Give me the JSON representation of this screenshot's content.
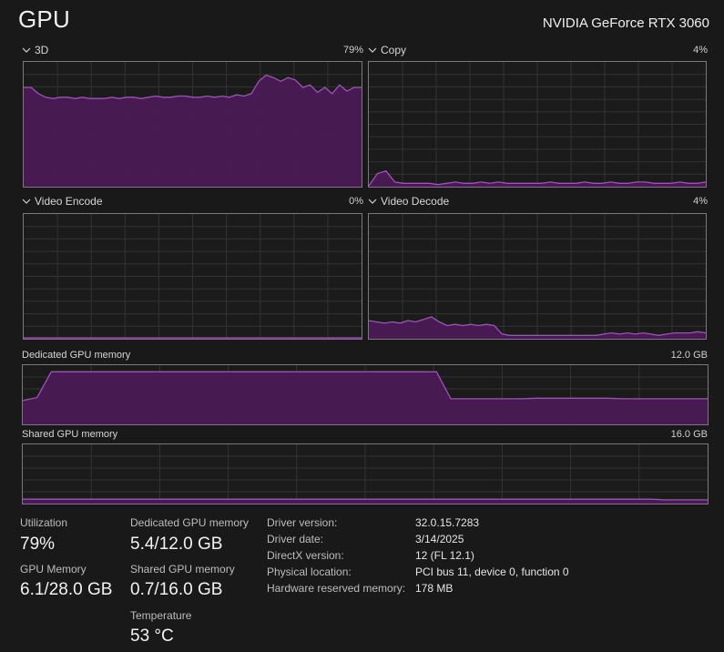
{
  "header": {
    "title": "GPU",
    "device": "NVIDIA GeForce RTX 3060"
  },
  "colors": {
    "accent": "#a54cc2",
    "fill": "#4b1a55",
    "grid": "#333333",
    "border": "#7a7a7a"
  },
  "graphs": [
    {
      "label": "3D",
      "percent": "79%",
      "values": [
        80,
        80,
        75,
        72,
        71,
        72,
        72,
        71,
        72,
        71,
        71,
        71,
        72,
        71,
        72,
        72,
        71,
        72,
        73,
        72,
        72,
        73,
        73,
        72,
        72,
        73,
        72,
        73,
        72,
        74,
        73,
        75,
        85,
        90,
        88,
        85,
        88,
        86,
        80,
        82,
        76,
        80,
        75,
        82,
        77,
        80,
        80
      ]
    },
    {
      "label": "Copy",
      "percent": "4%",
      "values": [
        0,
        10,
        12,
        3,
        2,
        2,
        2,
        2,
        1,
        2,
        3,
        2,
        2,
        3,
        2,
        3,
        2,
        2,
        2,
        2,
        2,
        3,
        2,
        2,
        2,
        3,
        2,
        2,
        3,
        2,
        2,
        3,
        3,
        2,
        2,
        2,
        3,
        2,
        2,
        3
      ]
    },
    {
      "label": "Video Encode",
      "percent": "0%",
      "values": [
        0,
        0,
        0,
        0,
        0,
        0,
        0,
        0,
        0,
        0,
        0,
        0,
        0,
        0,
        0,
        0,
        0,
        0,
        0,
        0,
        0,
        0,
        0,
        0,
        0,
        0,
        0,
        0,
        0,
        0,
        0,
        0,
        0,
        0,
        0,
        0,
        0,
        0,
        0,
        0
      ]
    },
    {
      "label": "Video Decode",
      "percent": "4%",
      "values": [
        14,
        13,
        12,
        13,
        12,
        14,
        13,
        15,
        17,
        13,
        10,
        11,
        10,
        11,
        10,
        11,
        10,
        3,
        2,
        2,
        2,
        2,
        2,
        2,
        2,
        2,
        2,
        2,
        2,
        2,
        3,
        4,
        3,
        4,
        3,
        4,
        3,
        2,
        3,
        4,
        4,
        4,
        5,
        4
      ]
    }
  ],
  "memory_graphs": [
    {
      "label": "Dedicated GPU memory",
      "max": "12.0 GB",
      "values": [
        40,
        45,
        90,
        90,
        90,
        90,
        90,
        90,
        90,
        90,
        90,
        90,
        90,
        90,
        90,
        90,
        90,
        90,
        90,
        90,
        90,
        90,
        90,
        90,
        90,
        90,
        90,
        90,
        90,
        90,
        43,
        43,
        43,
        43,
        43,
        43,
        44,
        44,
        44,
        44,
        44,
        44,
        43,
        43,
        43,
        43,
        43,
        43,
        43
      ]
    },
    {
      "label": "Shared GPU memory",
      "max": "16.0 GB",
      "values": [
        6,
        6,
        6,
        6,
        6,
        6,
        6,
        6,
        6,
        6,
        6,
        6,
        6,
        6,
        6,
        6,
        6,
        6,
        6,
        6,
        6,
        6,
        6,
        6,
        6,
        6,
        6,
        6,
        6,
        6,
        6,
        6,
        6,
        6,
        6,
        6,
        6,
        6,
        6,
        6,
        6,
        6,
        6,
        6,
        6,
        5,
        5,
        5,
        5
      ]
    }
  ],
  "stats": {
    "utilization": {
      "label": "Utilization",
      "value": "79%"
    },
    "gpu_memory": {
      "label": "GPU Memory",
      "value": "6.1/28.0 GB"
    },
    "dedicated_memory": {
      "label": "Dedicated GPU memory",
      "value": "5.4/12.0 GB"
    },
    "shared_memory": {
      "label": "Shared GPU memory",
      "value": "0.7/16.0 GB"
    },
    "temperature": {
      "label": "Temperature",
      "value": "53 °C"
    }
  },
  "details": [
    {
      "label": "Driver version:",
      "value": "32.0.15.7283"
    },
    {
      "label": "Driver date:",
      "value": "3/14/2025"
    },
    {
      "label": "DirectX version:",
      "value": "12 (FL 12.1)"
    },
    {
      "label": "Physical location:",
      "value": "PCI bus 11, device 0, function 0"
    },
    {
      "label": "Hardware reserved memory:",
      "value": "178 MB"
    }
  ]
}
